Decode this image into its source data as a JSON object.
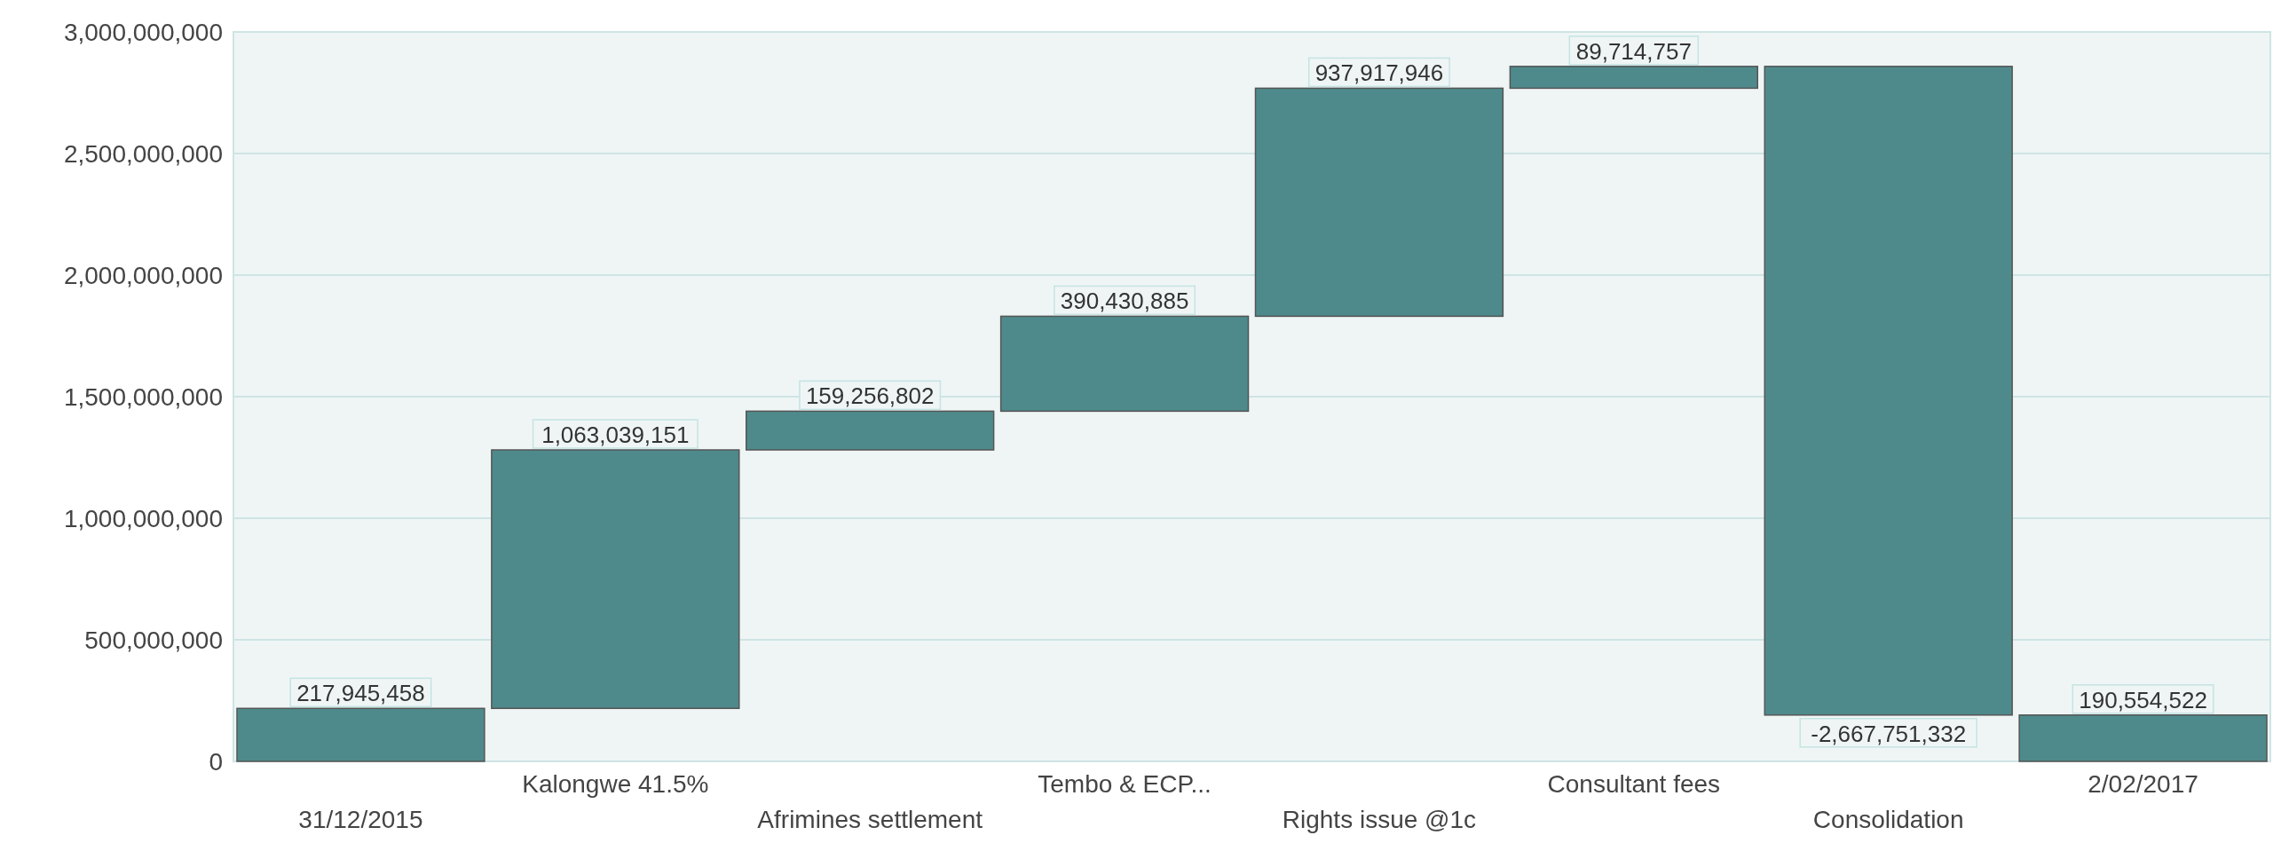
{
  "chart_data": {
    "type": "bar",
    "categories": [
      "31/12/2015",
      "Kalongwe 41.5%",
      "Afrimines settlement",
      "Tembo & ECP...",
      "Rights issue @1c",
      "Consultant fees",
      "Consolidation",
      "2/02/2017"
    ],
    "values": [
      217945458,
      1063039151,
      159256802,
      390430885,
      937917946,
      89714757,
      -2667751332,
      190554522
    ],
    "base": [
      0,
      217945458,
      1280984609,
      1440241411,
      1830672296,
      2768590242,
      2858304999,
      0
    ],
    "value_labels": [
      "217,945,458",
      "1,063,039,151",
      "159,256,802",
      "390,430,885",
      "937,917,946",
      "89,714,757",
      "-2,667,751,332",
      "190,554,522"
    ],
    "color": "#4e8a8b",
    "grid": "y",
    "ylim": [
      0,
      3000000000
    ],
    "yticks": [
      {
        "value": 0,
        "label": "0"
      },
      {
        "value": 500000000,
        "label": "500,000,000"
      },
      {
        "value": 1000000000,
        "label": "1,000,000,000"
      },
      {
        "value": 1500000000,
        "label": "1,500,000,000"
      },
      {
        "value": 2000000000,
        "label": "2,000,000,000"
      },
      {
        "value": 2500000000,
        "label": "2,500,000,000"
      },
      {
        "value": 3000000000,
        "label": "3,000,000,000"
      }
    ]
  }
}
